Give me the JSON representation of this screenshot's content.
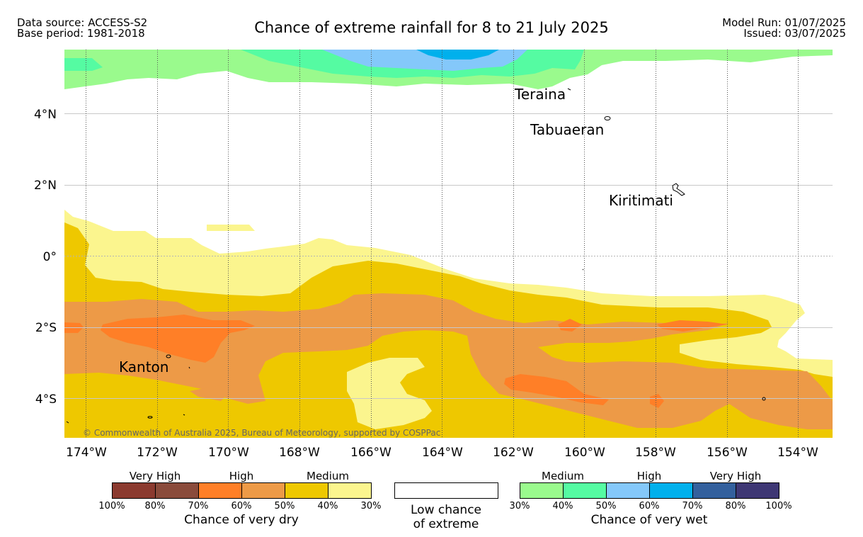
{
  "header": {
    "data_source": "Data source: ACCESS-S2",
    "base_period": "Base period: 1981-2018",
    "title": "Chance of extreme rainfall for 8 to 21 July 2025",
    "model_run": "Model Run: 01/07/2025",
    "issued": "Issued: 03/07/2025"
  },
  "map": {
    "lon_labels": [
      "174°W",
      "172°W",
      "170°W",
      "168°W",
      "166°W",
      "164°W",
      "162°W",
      "160°W",
      "158°W",
      "156°W",
      "154°W"
    ],
    "lat_labels": [
      "4°N",
      "2°N",
      "0°",
      "2°S",
      "4°S"
    ],
    "places": [
      "Teraina",
      "Tabuaeran",
      "Kiritimati",
      "Kanton"
    ],
    "copyright": "© Commonwealth of Australia 2025, Bureau of Meteorology, supported by COSPPac"
  },
  "legend": {
    "dry": {
      "groups": [
        "Very High",
        "High",
        "Medium"
      ],
      "ticks": [
        "100%",
        "80%",
        "70%",
        "60%",
        "50%",
        "40%",
        "30%"
      ],
      "title": "Chance of very dry",
      "colors": [
        "#8b3a2f",
        "#8a4b3b",
        "#ff7f27",
        "#ed9a47",
        "#eec800",
        "#fbf58e"
      ]
    },
    "low": {
      "line1": "Low chance",
      "line2": "of extreme"
    },
    "wet": {
      "groups": [
        "Medium",
        "High",
        "Very High"
      ],
      "ticks": [
        "30%",
        "40%",
        "50%",
        "60%",
        "70%",
        "80%",
        "100%"
      ],
      "title": "Chance of very wet",
      "colors": [
        "#9afa8d",
        "#55fba2",
        "#84c8fa",
        "#00b0ec",
        "#33609d",
        "#3e3774"
      ]
    }
  }
}
